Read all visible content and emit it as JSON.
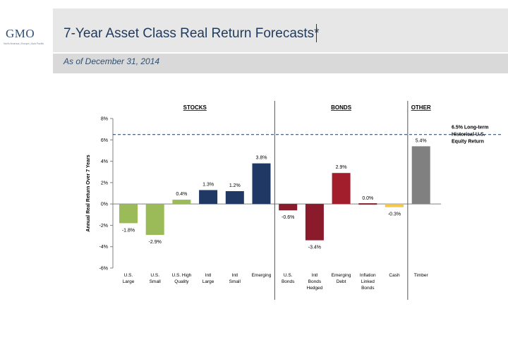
{
  "header": {
    "logo": "GMO",
    "logo_sub": "North America | Europe | Asia Pacific",
    "title": "7-Year Asset Class Real Return Forecasts*",
    "subtitle": "As of December 31, 2014"
  },
  "colors": {
    "green": "#9bbb59",
    "navy": "#1f3864",
    "red": "#8b1a2b",
    "darkred": "#a31e2c",
    "yellow": "#f2c94c",
    "gray": "#808080",
    "dash": "#1f3864"
  },
  "chart_data": {
    "type": "bar",
    "ylabel": "Annual Real Return Over 7 Years",
    "ylim": [
      -6,
      8
    ],
    "yticks": [
      -6,
      -4,
      -2,
      0,
      2,
      4,
      6,
      8
    ],
    "ytick_labels": [
      "-6%",
      "-4%",
      "-2%",
      "0%",
      "2%",
      "4%",
      "6%",
      "8%"
    ],
    "groups": [
      "STOCKS",
      "BONDS",
      "OTHER"
    ],
    "bars": [
      {
        "category": "U.S.\nLarge",
        "value": -1.8,
        "label": "-1.8%",
        "group": "STOCKS",
        "color": "green"
      },
      {
        "category": "U.S.\nSmall",
        "value": -2.9,
        "label": "-2.9%",
        "group": "STOCKS",
        "color": "green"
      },
      {
        "category": "U.S. High\nQuality",
        "value": 0.4,
        "label": "0.4%",
        "group": "STOCKS",
        "color": "green"
      },
      {
        "category": "Intl\nLarge",
        "value": 1.3,
        "label": "1.3%",
        "group": "STOCKS",
        "color": "navy"
      },
      {
        "category": "Intl\nSmall",
        "value": 1.2,
        "label": "1.2%",
        "group": "STOCKS",
        "color": "navy"
      },
      {
        "category": "Emerging",
        "value": 3.8,
        "label": "3.8%",
        "group": "STOCKS",
        "color": "navy"
      },
      {
        "category": "U.S.\nBonds",
        "value": -0.6,
        "label": "-0.6%",
        "group": "BONDS",
        "color": "red"
      },
      {
        "category": "Intl\nBonds\nHedged",
        "value": -3.4,
        "label": "-3.4%",
        "group": "BONDS",
        "color": "red"
      },
      {
        "category": "Emerging\nDebt",
        "value": 2.9,
        "label": "2.9%",
        "group": "BONDS",
        "color": "darkred"
      },
      {
        "category": "Inflation\nLinked\nBonds",
        "value": 0.0,
        "label": "0.0%",
        "group": "BONDS",
        "color": "red"
      },
      {
        "category": "Cash",
        "value": -0.3,
        "label": "-0.3%",
        "group": "BONDS",
        "color": "yellow"
      },
      {
        "category": "Timber",
        "value": 5.4,
        "label": "5.4%",
        "group": "OTHER",
        "color": "gray"
      }
    ],
    "reference_line": {
      "value": 6.5,
      "label": "6.5% Long-term\nHistorical U.S.\nEquity Return"
    }
  }
}
